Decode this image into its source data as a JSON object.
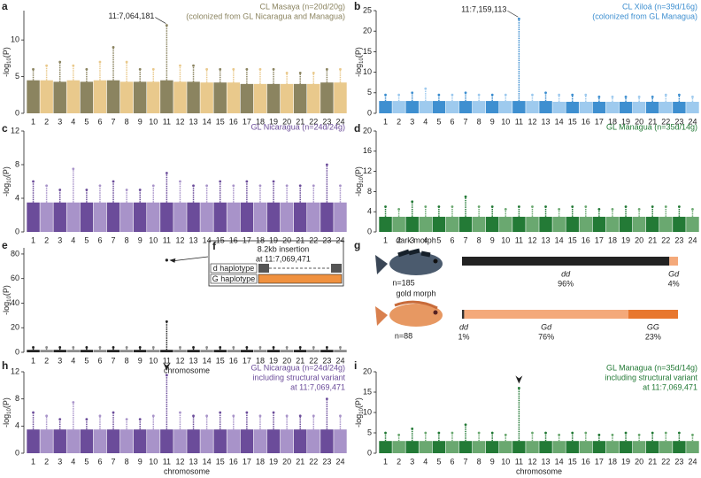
{
  "chart_data": [
    {
      "panel": "a",
      "type": "manhattan",
      "title": "CL Masaya (n=20d/20g)",
      "subtitle": "(colonized from GL Nicaragua and Managua)",
      "annotation": "11:7,064,181",
      "ylabel": {
        "pre": "-log",
        "sub": "10",
        "post": "(P)"
      },
      "categories": [
        1,
        2,
        3,
        4,
        5,
        6,
        7,
        8,
        9,
        10,
        11,
        12,
        13,
        14,
        15,
        16,
        17,
        18,
        19,
        20,
        21,
        22,
        23,
        24
      ],
      "values": [
        4.5,
        4.5,
        4.3,
        4.5,
        4.3,
        4.5,
        4.5,
        4.3,
        4.3,
        4.3,
        4.5,
        4.3,
        4.3,
        4.2,
        4.2,
        4.2,
        4.0,
        4.0,
        4.0,
        4.0,
        4.0,
        4.0,
        4.2,
        4.2
      ],
      "peaks": [
        6,
        6.5,
        7,
        6.5,
        6,
        7,
        9,
        7,
        6,
        6,
        12,
        6.5,
        6.5,
        6,
        6,
        6,
        6,
        6,
        6,
        5.5,
        5.5,
        5.5,
        6,
        6
      ],
      "colors": [
        "#8b8460",
        "#e9c98c"
      ],
      "ylim": [
        0,
        14
      ],
      "yticks": [
        0,
        5,
        10
      ]
    },
    {
      "panel": "b",
      "type": "manhattan",
      "title": "CL Xiloá (n=39d/16g)",
      "subtitle": "(colonized from GL Managua)",
      "annotation": "11:7,159,113",
      "ylabel": {
        "pre": "-log",
        "sub": "10",
        "post": "(P)"
      },
      "categories": [
        1,
        2,
        3,
        4,
        5,
        6,
        7,
        8,
        9,
        10,
        11,
        12,
        13,
        14,
        15,
        16,
        17,
        18,
        19,
        20,
        21,
        22,
        23,
        24
      ],
      "values": [
        3,
        3,
        3,
        3,
        3,
        3,
        3,
        3,
        3,
        3,
        3,
        3,
        3,
        2.8,
        2.8,
        2.8,
        2.8,
        2.8,
        2.8,
        2.8,
        2.8,
        2.8,
        2.8,
        2.8
      ],
      "peaks": [
        4.5,
        4.5,
        5,
        6,
        4.5,
        4.5,
        5,
        4.5,
        4.5,
        4.5,
        23,
        4.5,
        5,
        4.5,
        4.5,
        4.5,
        4,
        4,
        4,
        4,
        4,
        4.5,
        4.5,
        4
      ],
      "colors": [
        "#3e8fd0",
        "#9ecaee"
      ],
      "ylim": [
        0,
        25
      ],
      "yticks": [
        0,
        5,
        10,
        15,
        20,
        25
      ]
    },
    {
      "panel": "c",
      "type": "manhattan",
      "title": "GL Nicaragua (n=24d/24g)",
      "ylabel": {
        "pre": "-log",
        "sub": "10",
        "post": "(P)"
      },
      "categories": [
        1,
        2,
        3,
        4,
        5,
        6,
        7,
        8,
        9,
        10,
        11,
        12,
        13,
        14,
        15,
        16,
        17,
        18,
        19,
        20,
        21,
        22,
        23,
        24
      ],
      "values": [
        3.5,
        3.5,
        3.5,
        3.5,
        3.5,
        3.5,
        3.5,
        3.5,
        3.5,
        3.5,
        3.5,
        3.5,
        3.5,
        3.5,
        3.5,
        3.5,
        3.5,
        3.5,
        3.5,
        3.5,
        3.5,
        3.5,
        3.5,
        3.5
      ],
      "peaks": [
        6,
        5.5,
        5,
        7.5,
        5,
        5.5,
        6,
        5,
        5,
        5.5,
        7,
        6,
        5.5,
        5.5,
        6,
        5.5,
        6,
        5.5,
        6,
        5.5,
        5.5,
        5.5,
        8,
        5.5
      ],
      "colors": [
        "#6b4c9a",
        "#a893c9"
      ],
      "ylim": [
        0,
        12
      ],
      "yticks": [
        0,
        4,
        8,
        12
      ]
    },
    {
      "panel": "d",
      "type": "manhattan",
      "title": "GL Managua (n=35d/14g)",
      "ylabel": {
        "pre": "-log",
        "sub": "10",
        "post": "(P)"
      },
      "categories": [
        1,
        2,
        3,
        4,
        5,
        6,
        7,
        8,
        9,
        10,
        11,
        12,
        13,
        14,
        15,
        16,
        17,
        18,
        19,
        20,
        21,
        22,
        23,
        24
      ],
      "values": [
        3,
        3,
        3,
        3,
        3,
        3,
        3,
        3,
        3,
        3,
        3,
        3,
        3,
        3,
        3,
        3,
        3,
        3,
        3,
        3,
        3,
        3,
        3,
        3
      ],
      "peaks": [
        5,
        4.5,
        6,
        5,
        5,
        5,
        7,
        5,
        5,
        4.5,
        5,
        5,
        5,
        4.5,
        5,
        5,
        4.5,
        4.5,
        5,
        4.5,
        5,
        5,
        5,
        4.5
      ],
      "colors": [
        "#237a36",
        "#6aa870"
      ],
      "ylim": [
        0,
        20
      ],
      "yticks": [
        0,
        4,
        8,
        12,
        16,
        20
      ]
    },
    {
      "panel": "e",
      "type": "manhattan",
      "xlabel": "chromosome",
      "ylabel": {
        "pre": "-log",
        "sub": "10",
        "post": "(P)"
      },
      "categories": [
        1,
        2,
        3,
        4,
        5,
        6,
        7,
        8,
        9,
        10,
        11,
        12,
        13,
        14,
        15,
        16,
        17,
        18,
        19,
        20,
        21,
        22,
        23,
        24
      ],
      "values": [
        2,
        2,
        2,
        2,
        2,
        2,
        2,
        2,
        2,
        2,
        2,
        2,
        2,
        2,
        2,
        2,
        2,
        2,
        2,
        2,
        2,
        2,
        2,
        2
      ],
      "peaks": [
        4,
        4,
        4,
        4,
        4,
        4,
        4,
        4,
        4,
        4,
        25,
        4,
        4,
        4,
        4,
        4,
        4,
        4,
        4,
        4,
        4,
        4,
        4,
        4
      ],
      "outlier": {
        "x": 11,
        "y": 75
      },
      "colors": [
        "#222222",
        "#8a8a8a"
      ],
      "ylim": [
        0,
        85
      ],
      "yticks": [
        0,
        20,
        40,
        60,
        80
      ]
    },
    {
      "panel": "h",
      "type": "manhattan",
      "title": "GL Nicaragua (n=24d/24g)",
      "subtitle": "including structural variant",
      "subtitle2": "at 11:7,069,471",
      "xlabel": "chromosome",
      "arrowhead": true,
      "ylabel": {
        "pre": "-log",
        "sub": "10",
        "post": "(P)"
      },
      "categories": [
        1,
        2,
        3,
        4,
        5,
        6,
        7,
        8,
        9,
        10,
        11,
        12,
        13,
        14,
        15,
        16,
        17,
        18,
        19,
        20,
        21,
        22,
        23,
        24
      ],
      "values": [
        3.5,
        3.5,
        3.5,
        3.5,
        3.5,
        3.5,
        3.5,
        3.5,
        3.5,
        3.5,
        3.5,
        3.5,
        3.5,
        3.5,
        3.5,
        3.5,
        3.5,
        3.5,
        3.5,
        3.5,
        3.5,
        3.5,
        3.5,
        3.5
      ],
      "peaks": [
        6,
        5.5,
        5,
        7.5,
        5,
        5.5,
        6,
        5,
        5,
        5.5,
        11.5,
        6,
        5.5,
        5.5,
        6,
        5.5,
        6,
        5.5,
        6,
        5.5,
        5.5,
        5.5,
        8,
        5.5
      ],
      "colors": [
        "#6b4c9a",
        "#a893c9"
      ],
      "ylim": [
        0,
        12
      ],
      "yticks": [
        0,
        4,
        8,
        12
      ]
    },
    {
      "panel": "i",
      "type": "manhattan",
      "title": "GL Managua (n=35d/14g)",
      "subtitle": "including structural variant",
      "subtitle2": "at 11:7,069,471",
      "xlabel": "chromosome",
      "arrowhead": true,
      "ylabel": {
        "pre": "-log",
        "sub": "10",
        "post": "(P)"
      },
      "categories": [
        1,
        2,
        3,
        4,
        5,
        6,
        7,
        8,
        9,
        10,
        11,
        12,
        13,
        14,
        15,
        16,
        17,
        18,
        19,
        20,
        21,
        22,
        23,
        24
      ],
      "values": [
        3,
        3,
        3,
        3,
        3,
        3,
        3,
        3,
        3,
        3,
        3,
        3,
        3,
        3,
        3,
        3,
        3,
        3,
        3,
        3,
        3,
        3,
        3,
        3
      ],
      "peaks": [
        5,
        4.5,
        6,
        5,
        5,
        5,
        7,
        5,
        5,
        4.5,
        16,
        5,
        5,
        4.5,
        5,
        5,
        4.5,
        4.5,
        5,
        4.5,
        5,
        5,
        5,
        4.5
      ],
      "colors": [
        "#237a36",
        "#6aa870"
      ],
      "ylim": [
        0,
        20
      ],
      "yticks": [
        0,
        5,
        10,
        15,
        20
      ]
    },
    {
      "panel": "g",
      "type": "genotype_bar",
      "groups": [
        {
          "name": "dark morph",
          "n": "n=185",
          "segments": [
            {
              "label": "dd",
              "value": 96,
              "value_label": "96%",
              "color": "#222222"
            },
            {
              "label": "Gd",
              "value": 4,
              "value_label": "4%",
              "color": "#f4a97a"
            }
          ]
        },
        {
          "name": "gold morph",
          "n": "n=88",
          "segments": [
            {
              "label": "dd",
              "value": 1,
              "value_label": "1%",
              "color": "#333333"
            },
            {
              "label": "Gd",
              "value": 76,
              "value_label": "76%",
              "color": "#f4a97a"
            },
            {
              "label": "GG",
              "value": 23,
              "value_label": "23%",
              "color": "#e8772e"
            }
          ]
        }
      ]
    }
  ],
  "inset": {
    "panel": "f",
    "title": "8.2kb insertion",
    "subtitle": "at 11:7,069,471",
    "rows": [
      "d haplotype",
      "G haplotype"
    ]
  }
}
